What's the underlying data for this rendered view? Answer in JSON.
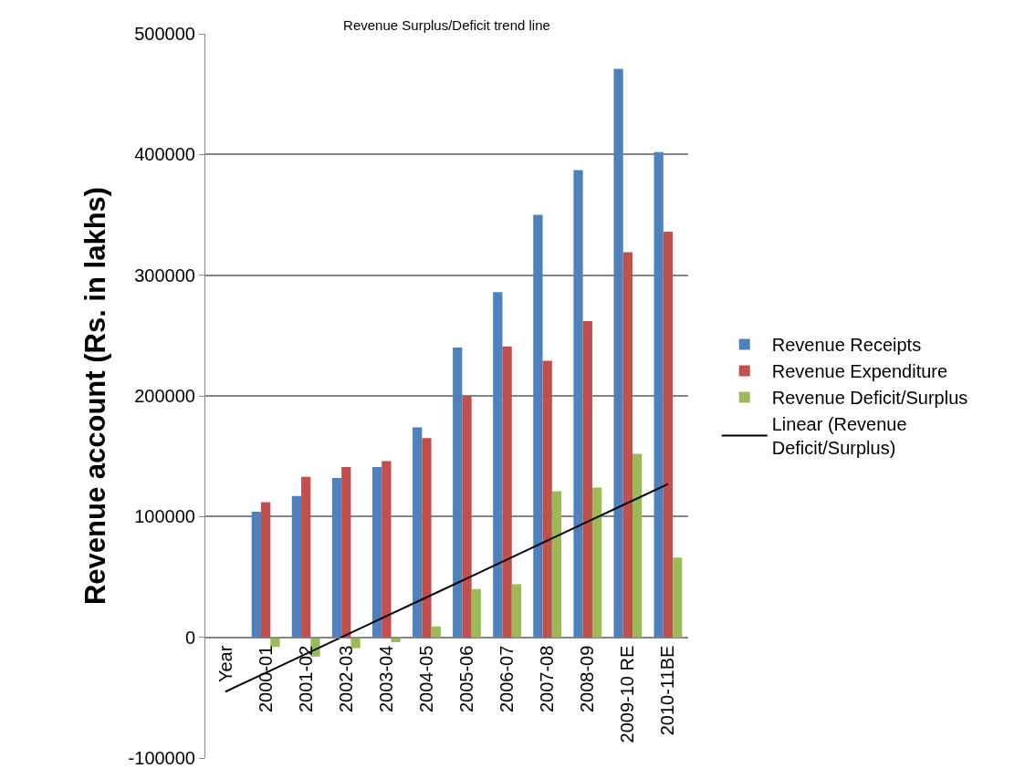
{
  "chart_data": {
    "type": "bar",
    "title": "Revenue Surplus/Deficit trend line",
    "ylabel": "Revenue account (Rs. in lakhs)",
    "categories": [
      "Year",
      "2000-01",
      "2001-02",
      "2002-03",
      "2003-04",
      "2004-05",
      "2005-06",
      "2006-07",
      "2007-08",
      "2008-09",
      "2009-10 RE",
      "2010-11BE"
    ],
    "series": [
      {
        "name": "Revenue Receipts",
        "color": "#4f81bd",
        "values": [
          null,
          104000,
          117000,
          132000,
          141000,
          174000,
          240000,
          286000,
          350000,
          387000,
          471000,
          402000
        ]
      },
      {
        "name": "Revenue Expenditure",
        "color": "#c0504d",
        "values": [
          null,
          112000,
          133000,
          141000,
          146000,
          165000,
          200000,
          241000,
          229000,
          262000,
          319000,
          336000
        ]
      },
      {
        "name": "Revenue Deficit/Surplus",
        "color": "#9bbb59",
        "values": [
          null,
          -8000,
          -16000,
          -9000,
          -4000,
          9000,
          40000,
          44000,
          121000,
          124000,
          152000,
          66000
        ]
      },
      {
        "name": "Linear (Revenue Deficit/Surplus)",
        "type": "line",
        "color": "#000000",
        "values": [
          -45000,
          -29400,
          -13700,
          1900,
          17600,
          33200,
          48800,
          64500,
          80100,
          95800,
          111400,
          127000
        ]
      }
    ],
    "ylim": [
      -100000,
      500000
    ],
    "yticks": [
      -100000,
      0,
      100000,
      200000,
      300000,
      400000,
      500000
    ],
    "grid": "y",
    "legend": "right"
  }
}
